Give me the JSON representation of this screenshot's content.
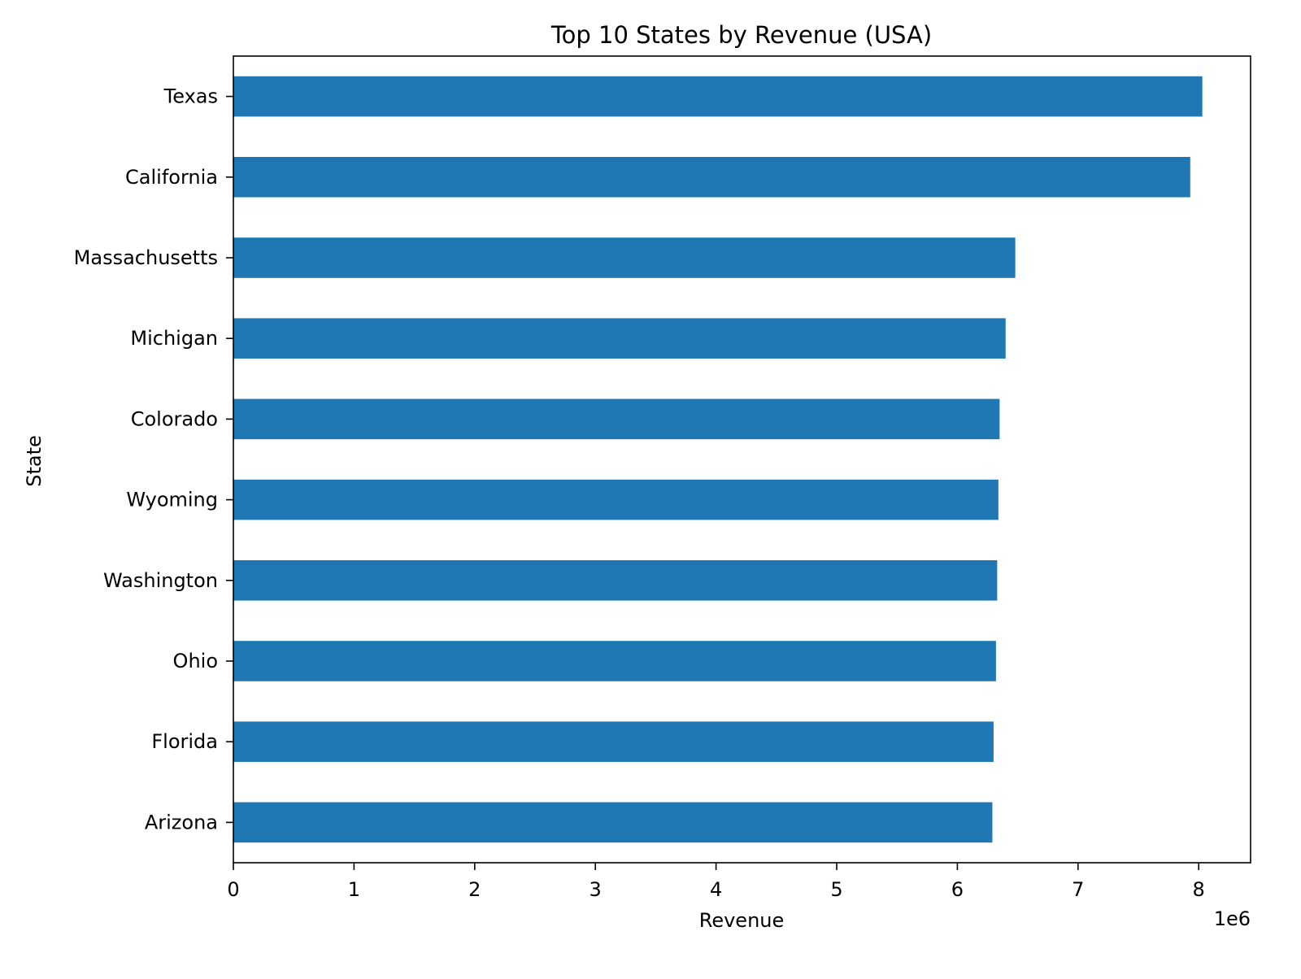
{
  "chart_data": {
    "type": "bar",
    "orientation": "horizontal",
    "title": "Top 10 States by Revenue (USA)",
    "xlabel": "Revenue",
    "ylabel": "State",
    "x_multiplier_label": "1e6",
    "categories": [
      "Texas",
      "California",
      "Massachusetts",
      "Michigan",
      "Colorado",
      "Wyoming",
      "Washington",
      "Ohio",
      "Florida",
      "Arizona"
    ],
    "values": [
      8.03,
      7.93,
      6.48,
      6.4,
      6.35,
      6.34,
      6.33,
      6.32,
      6.3,
      6.29
    ],
    "xlim": [
      0,
      8.43
    ],
    "xticks": [
      "0",
      "1",
      "2",
      "3",
      "4",
      "5",
      "6",
      "7",
      "8"
    ],
    "grid": false,
    "bar_color": "#1f77b4"
  }
}
